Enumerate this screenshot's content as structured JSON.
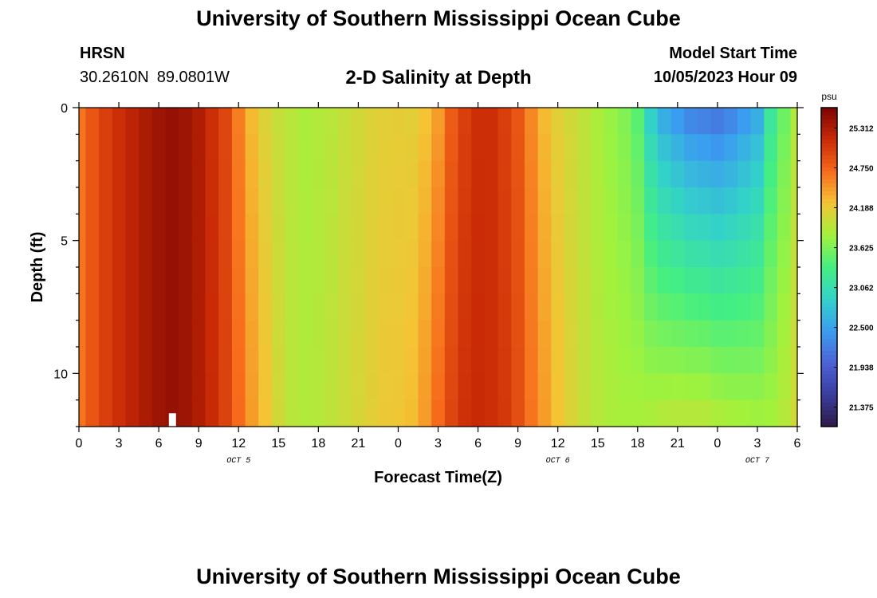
{
  "header": {
    "title": "University of Southern Mississippi Ocean Cube",
    "station": "HRSN",
    "latitude": "30.2610N",
    "longitude": "89.0801W",
    "subtitle": "2-D Salinity at Depth",
    "model_start_label": "Model Start Time",
    "model_start_value": "10/05/2023 Hour 09"
  },
  "footer": {
    "title": "University of Southern Mississippi Ocean Cube"
  },
  "colors": {
    "ramp": [
      "#2d1a47",
      "#3a3d9e",
      "#4c62d6",
      "#3b9df0",
      "#33d2c9",
      "#44ef82",
      "#a2f23c",
      "#f4c435",
      "#f76a1b",
      "#c92a06",
      "#7a0402"
    ],
    "marker": "#ffffff"
  },
  "chart_data": {
    "type": "heatmap",
    "title": "2-D Salinity at Depth",
    "xlabel": "Forecast Time(Z)",
    "ylabel": "Depth (ft)",
    "x_ticks": [
      "0",
      "3",
      "6",
      "9",
      "12",
      "15",
      "18",
      "21",
      "0",
      "3",
      "6",
      "9",
      "12",
      "15",
      "18",
      "21",
      "0",
      "3",
      "6"
    ],
    "x_hours": [
      0,
      3,
      6,
      9,
      12,
      15,
      18,
      21,
      24,
      27,
      30,
      33,
      36,
      39,
      42,
      45,
      48,
      51,
      54
    ],
    "date_labels": [
      {
        "text": "OCT 5",
        "hour": 12
      },
      {
        "text": "OCT 6",
        "hour": 36
      },
      {
        "text": "OCT 7",
        "hour": 51
      }
    ],
    "y_ticks": [
      "0",
      "5",
      "10"
    ],
    "y_tick_values": [
      0,
      5,
      10
    ],
    "xlim": [
      0,
      54
    ],
    "ylim": [
      0,
      12
    ],
    "colorbar": {
      "unit": "psu",
      "min": 21.1,
      "max": 25.6,
      "ticks": [
        "25.312",
        "24.750",
        "24.188",
        "23.625",
        "23.062",
        "22.500",
        "21.938",
        "21.375"
      ]
    },
    "marker": {
      "hour": 7,
      "depth_from": 11.5,
      "depth_to": 12
    },
    "depth_levels": 12,
    "hours": [
      0,
      1,
      2,
      3,
      4,
      5,
      6,
      7,
      8,
      9,
      10,
      11,
      12,
      13,
      14,
      15,
      16,
      17,
      18,
      19,
      20,
      21,
      22,
      23,
      24,
      25,
      26,
      27,
      28,
      29,
      30,
      31,
      32,
      33,
      34,
      35,
      36,
      37,
      38,
      39,
      40,
      41,
      42,
      43,
      44,
      45,
      46,
      47,
      48,
      49,
      50,
      51,
      52,
      53,
      54
    ],
    "surface_salinity": [
      24.65,
      24.85,
      25.0,
      25.12,
      25.22,
      25.32,
      25.4,
      25.45,
      25.4,
      25.3,
      25.12,
      24.95,
      24.6,
      24.3,
      24.12,
      24.0,
      23.92,
      23.85,
      23.88,
      23.92,
      24.0,
      24.05,
      24.12,
      24.15,
      24.17,
      24.15,
      24.25,
      24.45,
      24.8,
      25.0,
      25.12,
      25.12,
      25.0,
      24.85,
      24.55,
      24.3,
      24.15,
      24.05,
      23.95,
      23.85,
      23.75,
      23.65,
      23.45,
      22.9,
      22.6,
      22.45,
      22.3,
      22.25,
      22.2,
      22.3,
      22.45,
      22.6,
      23.2,
      23.55,
      23.9
    ],
    "bottom_salinity": [
      24.65,
      24.85,
      25.0,
      25.12,
      25.22,
      25.32,
      25.4,
      25.45,
      25.4,
      25.3,
      25.15,
      24.98,
      24.7,
      24.45,
      24.25,
      24.05,
      23.92,
      23.88,
      23.9,
      23.95,
      24.02,
      24.08,
      24.15,
      24.2,
      24.22,
      24.28,
      24.45,
      24.7,
      24.95,
      25.1,
      25.15,
      25.12,
      25.05,
      24.9,
      24.65,
      24.45,
      24.25,
      24.1,
      23.98,
      23.9,
      23.85,
      23.82,
      23.82,
      23.85,
      23.88,
      23.9,
      23.9,
      23.9,
      23.85,
      23.82,
      23.8,
      23.78,
      23.8,
      23.9,
      24.05
    ]
  }
}
